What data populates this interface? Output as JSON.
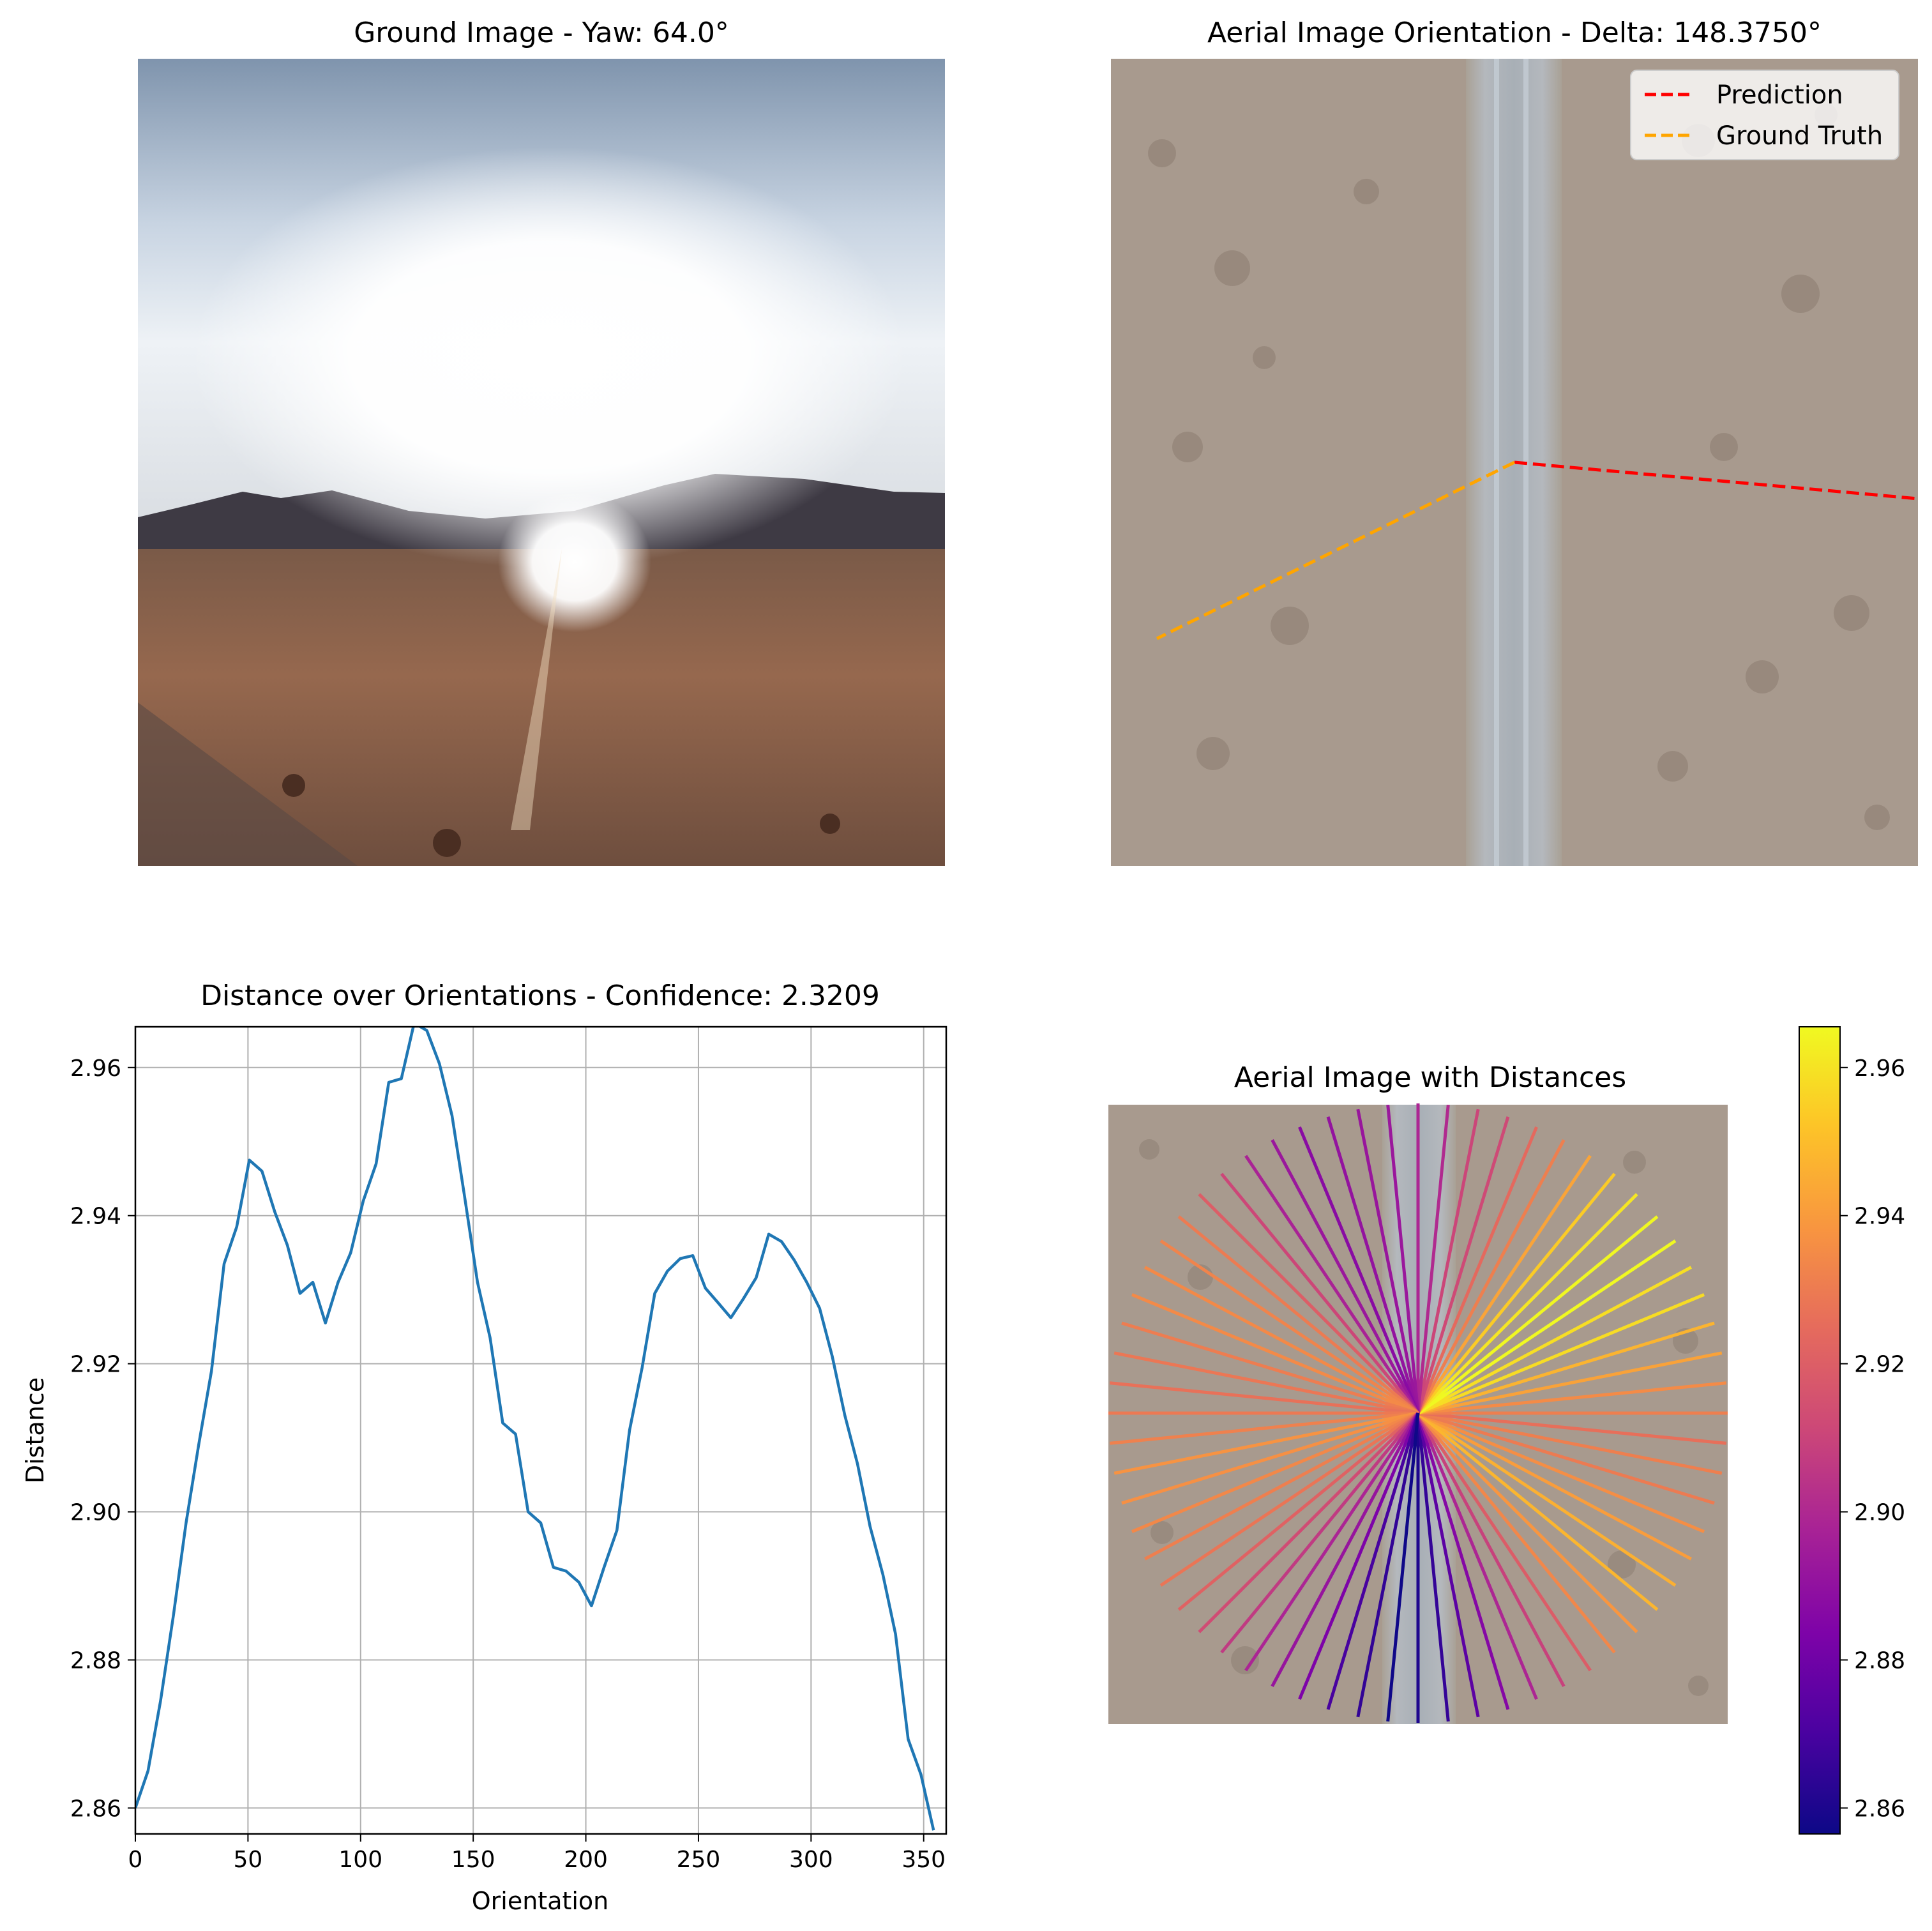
{
  "panels": {
    "ground": {
      "title": "Ground Image - Yaw: 64.0°"
    },
    "aerial": {
      "title": "Aerial Image Orientation - Delta: 148.3750°",
      "legend": [
        "Prediction",
        "Ground Truth"
      ]
    },
    "distances": {
      "title": "Aerial Image with Distances"
    }
  },
  "colors": {
    "prediction": "#ff0000",
    "ground_truth": "#ffa500",
    "line": "#1f77b4",
    "grid": "#b0b0b0",
    "colormap": "plasma"
  },
  "chart_data": [
    {
      "type": "line",
      "title": "Distance over Orientations - Confidence: 2.3209",
      "xlabel": "Orientation",
      "ylabel": "Distance",
      "xlim": [
        0,
        360
      ],
      "ylim": [
        2.8565,
        2.9655
      ],
      "grid": true,
      "x_ticks": [
        "0",
        "50",
        "100",
        "150",
        "200",
        "250",
        "300",
        "350"
      ],
      "y_ticks": [
        "2.86",
        "2.88",
        "2.90",
        "2.92",
        "2.94",
        "2.96"
      ],
      "x": [
        0,
        5.6,
        11.2,
        16.9,
        22.5,
        28.1,
        33.8,
        39.4,
        45,
        50.6,
        56.2,
        61.9,
        67.5,
        73.1,
        78.8,
        84.4,
        90,
        95.6,
        101.2,
        106.9,
        112.5,
        118.1,
        123.8,
        129.4,
        135,
        140.6,
        146.2,
        151.9,
        157.5,
        163.1,
        168.8,
        174.4,
        180,
        185.6,
        191.2,
        196.9,
        202.5,
        208.1,
        213.8,
        219.4,
        225,
        230.6,
        236.2,
        241.9,
        247.5,
        253.1,
        258.8,
        264.4,
        270,
        275.6,
        281.2,
        286.9,
        292.5,
        298.1,
        303.8,
        309.4,
        315,
        320.6,
        326.2,
        331.9,
        337.5,
        343.1,
        348.8,
        354.4
      ],
      "values": [
        2.86,
        2.865,
        2.8745,
        2.886,
        2.8985,
        2.909,
        2.919,
        2.9335,
        2.9385,
        2.9475,
        2.946,
        2.9405,
        2.936,
        2.9295,
        2.931,
        2.9255,
        2.931,
        2.935,
        2.942,
        2.947,
        2.958,
        2.9585,
        2.966,
        2.965,
        2.9605,
        2.9535,
        2.9425,
        2.931,
        2.9235,
        2.912,
        2.9105,
        2.9,
        2.8985,
        2.8925,
        2.892,
        2.8905,
        2.8873,
        2.8925,
        2.8975,
        2.911,
        2.9195,
        2.9295,
        2.9325,
        2.9342,
        2.9346,
        2.9302,
        2.9282,
        2.9262,
        2.9288,
        2.9316,
        2.9375,
        2.9365,
        2.934,
        2.931,
        2.9275,
        2.921,
        2.913,
        2.9065,
        2.898,
        2.8915,
        2.8835,
        2.8693,
        2.8645,
        2.857
      ]
    },
    {
      "type": "heatmap",
      "title": "Aerial Image with Distances",
      "colorbar_ticks": [
        "2.86",
        "2.88",
        "2.90",
        "2.92",
        "2.94",
        "2.96"
      ],
      "colorbar_range": [
        2.8565,
        2.9655
      ]
    }
  ]
}
